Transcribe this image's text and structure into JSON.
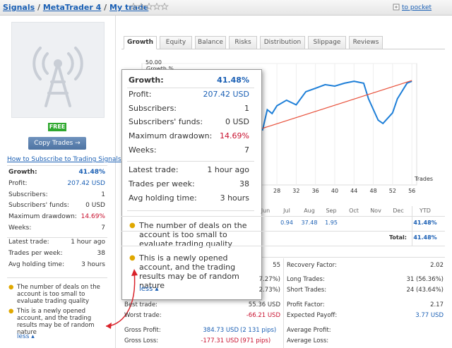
{
  "breadcrumb": [
    "Signals",
    "MetaTrader 4",
    "My trade"
  ],
  "pocket_link": "to pocket",
  "badge": "FREE",
  "copy_button": "Copy Trades →",
  "subscribe_link": "How to Subscribe to Trading Signals",
  "tabs": [
    "Growth",
    "Equity",
    "Balance",
    "Risks",
    "Distribution",
    "Slippage",
    "Reviews"
  ],
  "stats": [
    {
      "label": "Growth:",
      "value": "41.48%"
    },
    {
      "label": "Profit:",
      "value": "207.42 USD"
    },
    {
      "label": "Subscribers:",
      "value": "1"
    },
    {
      "label": "Subscribers' funds:",
      "value": "0 USD"
    },
    {
      "label": "Maximum drawdown:",
      "value": "14.69%"
    },
    {
      "label": "Weeks:",
      "value": "7"
    }
  ],
  "trade_stats": [
    {
      "label": "Latest trade:",
      "value": "1 hour ago"
    },
    {
      "label": "Trades per week:",
      "value": "38"
    },
    {
      "label": "Avg holding time:",
      "value": "3 hours"
    }
  ],
  "warnings": [
    "The number of deals on the account is too small to evaluate trading quality",
    "This is a newly opened account, and the trading results may be of random nature"
  ],
  "less": "less",
  "growth_chart": {
    "type": "line",
    "y_label": "Growth %",
    "x_label": "Trades",
    "xlim": [
      0,
      57
    ],
    "ylim": [
      0,
      50
    ],
    "xticks": [
      28,
      32,
      36,
      40,
      44,
      48,
      52,
      56
    ],
    "yticks": [
      {
        "value": 50,
        "label": "50.00"
      }
    ],
    "grid": true,
    "series": [
      {
        "color": "#1e7fd8",
        "x": [
          25,
          26,
          27,
          28,
          30,
          32,
          34,
          36,
          38,
          40,
          42,
          44,
          46,
          47,
          49,
          50,
          52,
          53,
          55,
          56
        ],
        "values": [
          22.4,
          31,
          29.4,
          32.6,
          34.9,
          33,
          38.4,
          39.8,
          41.3,
          40.7,
          41.9,
          42.7,
          41.9,
          35.5,
          26.7,
          25.3,
          29.7,
          35.5,
          41.9,
          42.7
        ]
      },
      {
        "color": "#e8503a",
        "x": [
          25,
          56
        ],
        "values": [
          23.3,
          43
        ]
      }
    ]
  },
  "monthly": {
    "months": [
      "Jun",
      "Jul",
      "Aug",
      "Sep",
      "Oct",
      "Nov",
      "Dec",
      "YTD"
    ],
    "values": [
      null,
      "0.94",
      "37.48",
      "1.95",
      null,
      null,
      null,
      "41.48%"
    ],
    "total_label": "Total:",
    "total": "41.48%"
  },
  "details_left": [
    {
      "value": "55"
    },
    {
      "value": "7.27%)"
    },
    {
      "value": "2.73%)"
    },
    {
      "label": "Best trade:",
      "value": "55.36 USD"
    },
    {
      "label": "Worst trade:",
      "value": "-66.21 USD"
    },
    {
      "label": "Gross Profit:",
      "value": "384.73 USD",
      "extra": "(2 131 pips)"
    },
    {
      "label": "Gross Loss:",
      "value": "-177.31 USD",
      "extra": "(971 pips)"
    }
  ],
  "details_right": [
    {
      "label": "Recovery Factor:",
      "value": "2.02"
    },
    {
      "label": "Long Trades:",
      "value": "31 (56.36%)"
    },
    {
      "label": "Short Trades:",
      "value": "24 (43.64%)"
    },
    {
      "label": "Profit Factor:",
      "value": "2.17"
    },
    {
      "label": "Expected Payoff:",
      "value": "3.77 USD"
    },
    {
      "label": "Average Profit:"
    },
    {
      "label": "Average Loss:"
    }
  ]
}
